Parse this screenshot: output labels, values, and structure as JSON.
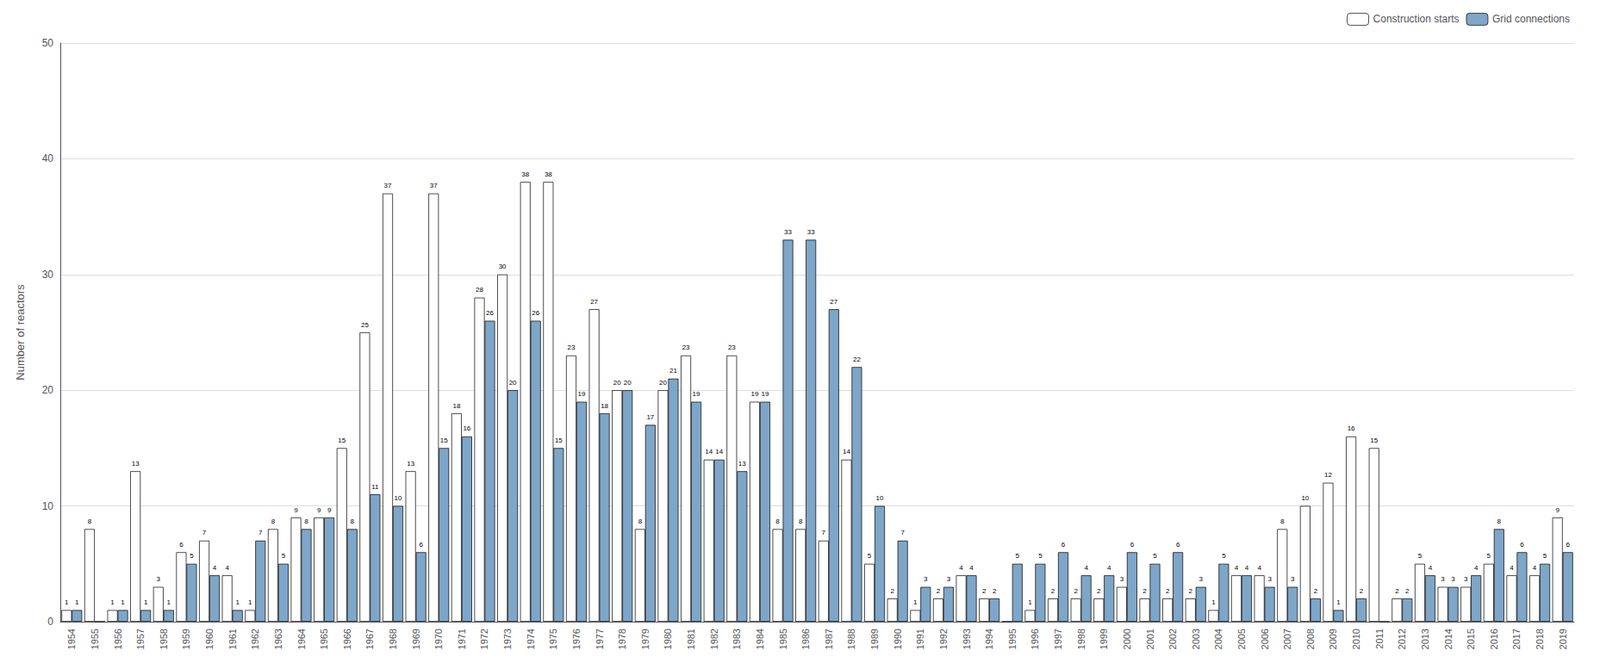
{
  "chart_data": {
    "type": "bar",
    "ylabel": "Number of reactors",
    "categories": [
      "1954",
      "1955",
      "1956",
      "1957",
      "1958",
      "1959",
      "1960",
      "1961",
      "1962",
      "1963",
      "1964",
      "1965",
      "1966",
      "1967",
      "1968",
      "1969",
      "1970",
      "1971",
      "1972",
      "1973",
      "1974",
      "1975",
      "1976",
      "1977",
      "1978",
      "1979",
      "1980",
      "1981",
      "1982",
      "1983",
      "1984",
      "1985",
      "1986",
      "1987",
      "1988",
      "1989",
      "1990",
      "1991",
      "1992",
      "1993",
      "1994",
      "1995",
      "1996",
      "1997",
      "1998",
      "1999",
      "2000",
      "2001",
      "2002",
      "2003",
      "2004",
      "2005",
      "2006",
      "2007",
      "2008",
      "2009",
      "2010",
      "2011",
      "2012",
      "2013",
      "2014",
      "2015",
      "2016",
      "2017",
      "2018",
      "2019"
    ],
    "series": [
      {
        "name": "Construction starts",
        "color": "#ffffff",
        "values": [
          1,
          8,
          1,
          13,
          3,
          6,
          7,
          4,
          1,
          8,
          9,
          9,
          15,
          25,
          37,
          13,
          37,
          18,
          28,
          30,
          38,
          38,
          23,
          27,
          20,
          8,
          20,
          23,
          14,
          23,
          19,
          8,
          8,
          7,
          14,
          5,
          2,
          1,
          2,
          4,
          2,
          0,
          1,
          2,
          2,
          2,
          3,
          2,
          2,
          2,
          1,
          4,
          4,
          8,
          10,
          12,
          16,
          15,
          2,
          5,
          3,
          3,
          5,
          4,
          4,
          9
        ],
        "value_labels": [
          "1",
          "8",
          "1",
          "13",
          "3",
          "6",
          "7",
          "4",
          "1",
          "8",
          "9",
          "9",
          "15",
          "25",
          "37",
          "13",
          "37",
          "18",
          "28",
          "30",
          "38",
          "38",
          "23",
          "27",
          "20",
          "8",
          "20",
          "23",
          "14",
          "23",
          "19",
          "8",
          "8",
          "7",
          "14",
          "5",
          "2",
          "1",
          "2",
          "4",
          "2",
          null,
          "1",
          "2",
          "2",
          "2",
          "3",
          "2",
          "2",
          "2",
          "1",
          "4",
          "4",
          "8",
          "10",
          "12",
          "16",
          "15",
          "2",
          "5",
          "3",
          "3",
          "5",
          "4",
          "4",
          "9"
        ]
      },
      {
        "name": "Grid connections",
        "color": "#7ea6c8",
        "values": [
          1,
          0,
          1,
          1,
          1,
          5,
          4,
          1,
          7,
          5,
          8,
          9,
          8,
          11,
          10,
          6,
          15,
          16,
          26,
          20,
          26,
          15,
          19,
          18,
          20,
          17,
          21,
          19,
          14,
          13,
          19,
          33,
          33,
          27,
          22,
          10,
          7,
          3,
          3,
          4,
          2,
          5,
          5,
          6,
          4,
          4,
          6,
          5,
          6,
          3,
          5,
          4,
          3,
          3,
          2,
          1,
          2,
          0,
          2,
          4,
          3,
          4,
          8,
          6,
          5,
          6
        ],
        "value_labels": [
          "1",
          null,
          "1",
          "1",
          "1",
          "5",
          "4",
          "1",
          "7",
          "5",
          "8",
          "9",
          "8",
          "11",
          "10",
          "6",
          "15",
          "16",
          "26",
          "20",
          "26",
          "15",
          "19",
          "18",
          "20",
          "17",
          "21",
          "19",
          "14",
          "13",
          "19",
          "33",
          "33",
          "27",
          "22",
          "10",
          "7",
          "3",
          "3",
          "4",
          "2",
          "5",
          "5",
          "6",
          "4",
          "4",
          "6",
          "5",
          "6",
          "3",
          "5",
          "4",
          "3",
          "3",
          "2",
          "1",
          "2",
          null,
          "2",
          "4",
          "3",
          "4",
          "8",
          "6",
          "5",
          "6"
        ]
      }
    ],
    "ylim": [
      0,
      50
    ],
    "yticks": [
      0,
      10,
      20,
      30,
      40,
      50
    ],
    "grid": true,
    "legend": "upper right",
    "data_labels": true
  }
}
